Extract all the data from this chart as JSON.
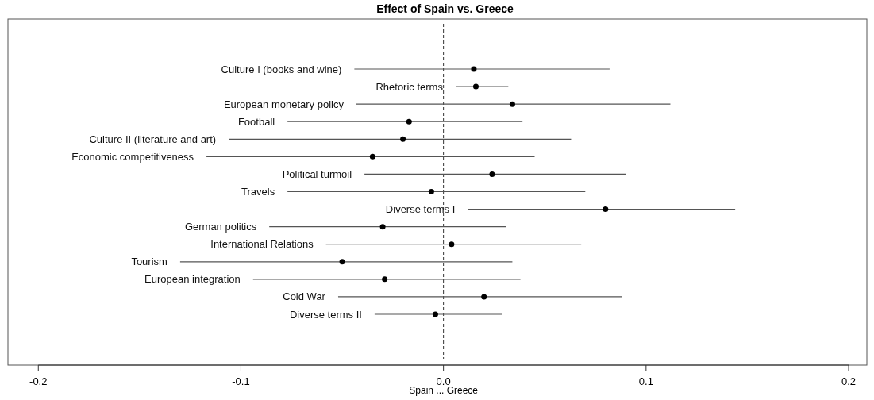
{
  "chart_data": {
    "type": "scatter",
    "orientation": "horizontal",
    "title": "Effect of Spain vs. Greece",
    "xlabel": "Spain ... Greece",
    "categories": [
      "Culture I (books and wine)",
      "Rhetoric terms",
      "European monetary policy",
      "Football",
      "Culture II (literature and art)",
      "Economic competitiveness",
      "Political turmoil",
      "Travels",
      "Diverse terms I",
      "German politics",
      "International Relations",
      "Tourism",
      "European integration",
      "Cold War",
      "Diverse terms II"
    ],
    "values": [
      0.015,
      0.016,
      0.034,
      -0.017,
      -0.02,
      -0.035,
      0.024,
      -0.006,
      0.08,
      -0.03,
      0.004,
      -0.05,
      -0.029,
      0.02,
      -0.004
    ],
    "errors": [
      [
        -0.044,
        0.082
      ],
      [
        0.006,
        0.032
      ],
      [
        -0.043,
        0.112
      ],
      [
        -0.077,
        0.039
      ],
      [
        -0.106,
        0.063
      ],
      [
        -0.117,
        0.045
      ],
      [
        -0.039,
        0.09
      ],
      [
        -0.077,
        0.07
      ],
      [
        0.012,
        0.144
      ],
      [
        -0.086,
        0.031
      ],
      [
        -0.058,
        0.068
      ],
      [
        -0.13,
        0.034
      ],
      [
        -0.094,
        0.038
      ],
      [
        -0.052,
        0.088
      ],
      [
        -0.034,
        0.029
      ]
    ],
    "color": "#000000",
    "marker": "circle",
    "grid": false,
    "xlim": [
      -0.215,
      0.209
    ],
    "xticks": [
      {
        "value": -0.2,
        "label": "-0.2"
      },
      {
        "value": -0.1,
        "label": "-0.1"
      },
      {
        "value": 0,
        "label": "0.0"
      },
      {
        "value": 0.1,
        "label": "0.1"
      },
      {
        "value": 0.2,
        "label": "0.2"
      }
    ],
    "ref_lines": [
      {
        "axis": "x",
        "value": 0,
        "line_style": "dashed",
        "color": "#333333"
      }
    ]
  }
}
